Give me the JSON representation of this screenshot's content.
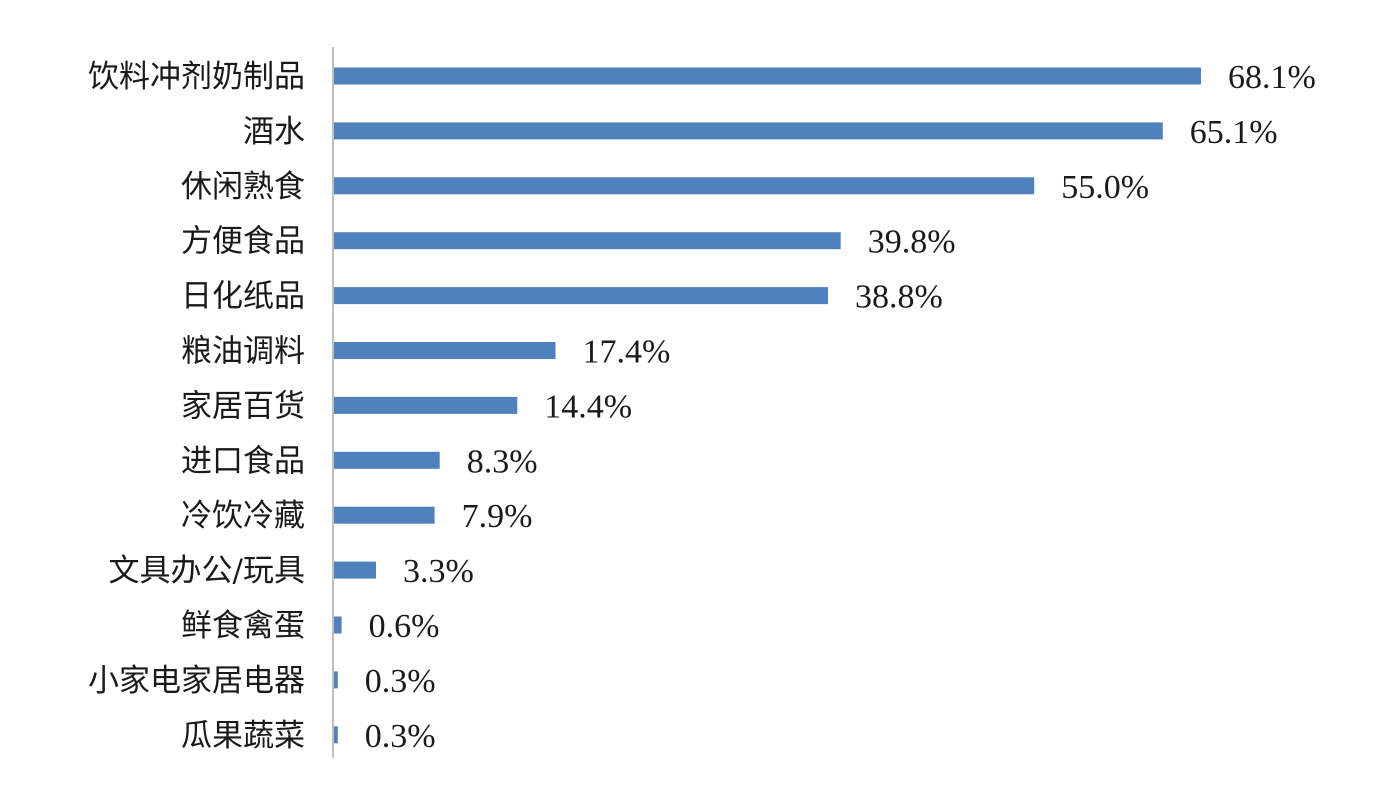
{
  "chart_data": {
    "type": "bar",
    "orientation": "horizontal",
    "categories": [
      "饮料冲剂奶制品",
      "酒水",
      "休闲熟食",
      "方便食品",
      "日化纸品",
      "粮油调料",
      "家居百货",
      "进口食品",
      "冷饮冷藏",
      "文具办公/玩具",
      "鲜食禽蛋",
      "小家电家居电器",
      "瓜果蔬菜"
    ],
    "values": [
      68.1,
      65.1,
      55.0,
      39.8,
      38.8,
      17.4,
      14.4,
      8.3,
      7.9,
      3.3,
      0.6,
      0.3,
      0.3
    ],
    "value_labels": [
      "68.1%",
      "65.1%",
      "55.0%",
      "39.8%",
      "38.8%",
      "17.4%",
      "14.4%",
      "8.3%",
      "7.9%",
      "3.3%",
      "0.6%",
      "0.3%",
      "0.3%"
    ],
    "title": "",
    "xlabel": "",
    "ylabel": "",
    "grid": false,
    "legend": "none",
    "bar_color": "#4f81bd",
    "axis_color": "#bfbfbf"
  }
}
